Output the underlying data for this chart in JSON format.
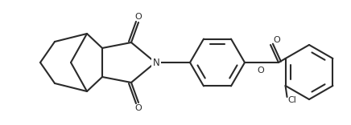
{
  "bg_color": "#ffffff",
  "line_color": "#2a2a2a",
  "lw": 1.5,
  "figsize": [
    4.36,
    1.56
  ],
  "dpi": 100,
  "atoms": {
    "O_top": "O",
    "O_bot": "O",
    "N": "N",
    "O_ester": "O",
    "O_carbonyl": "O",
    "Cl": "Cl"
  }
}
